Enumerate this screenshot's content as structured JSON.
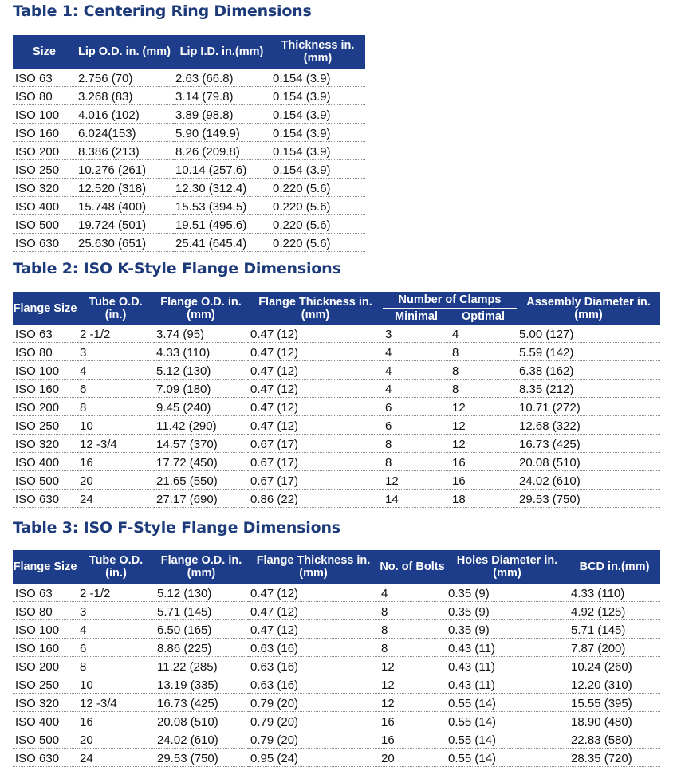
{
  "table1": {
    "title": "Table 1: Centering Ring Dimensions",
    "headers": [
      "Size",
      "Lip O.D. in. (mm)",
      "Lip I.D. in.(mm)",
      "Thickness in. (mm)"
    ],
    "rows": [
      [
        "ISO 63",
        "2.756 (70)",
        "2.63 (66.8)",
        "0.154 (3.9)"
      ],
      [
        "ISO 80",
        "3.268 (83)",
        "3.14 (79.8)",
        "0.154 (3.9)"
      ],
      [
        "ISO 100",
        "4.016 (102)",
        "3.89 (98.8)",
        "0.154 (3.9)"
      ],
      [
        "ISO 160",
        "6.024(153)",
        "5.90 (149.9)",
        "0.154 (3.9)"
      ],
      [
        "ISO 200",
        "8.386 (213)",
        "8.26 (209.8)",
        "0.154 (3.9)"
      ],
      [
        "ISO 250",
        "10.276 (261)",
        "10.14 (257.6)",
        "0.154 (3.9)"
      ],
      [
        "ISO 320",
        "12.520 (318)",
        "12.30 (312.4)",
        "0.220 (5.6)"
      ],
      [
        "ISO 400",
        "15.748 (400)",
        "15.53 (394.5)",
        "0.220 (5.6)"
      ],
      [
        "ISO 500",
        "19.724 (501)",
        "19.51 (495.6)",
        "0.220 (5.6)"
      ],
      [
        "ISO 630",
        "25.630 (651)",
        "25.41 (645.4)",
        "0.220 (5.6)"
      ]
    ]
  },
  "table2": {
    "title": "Table 2: ISO K-Style Flange Dimensions",
    "headers": [
      "Flange Size",
      "Tube O.D. (in.)",
      "Flange O.D. in. (mm)",
      "Flange Thickness in. (mm)",
      "Number of Clamps",
      "Assembly Diameter in.(mm)"
    ],
    "subheaders": [
      "Minimal",
      "Optimal"
    ],
    "rows": [
      [
        "ISO 63",
        "2 -1/2",
        "3.74 (95)",
        "0.47 (12)",
        "3",
        "4",
        "5.00 (127)"
      ],
      [
        "ISO 80",
        "3",
        "4.33 (110)",
        "0.47 (12)",
        "4",
        "8",
        "5.59 (142)"
      ],
      [
        "ISO 100",
        "4",
        "5.12 (130)",
        "0.47 (12)",
        "4",
        "8",
        "6.38 (162)"
      ],
      [
        "ISO 160",
        "6",
        "7.09 (180)",
        "0.47 (12)",
        "4",
        "8",
        "8.35 (212)"
      ],
      [
        "ISO 200",
        "8",
        "9.45 (240)",
        "0.47 (12)",
        "6",
        "12",
        "10.71 (272)"
      ],
      [
        "ISO 250",
        "10",
        "11.42 (290)",
        "0.47 (12)",
        "6",
        "12",
        "12.68 (322)"
      ],
      [
        "ISO 320",
        "12 -3/4",
        "14.57 (370)",
        "0.67 (17)",
        "8",
        "12",
        "16.73 (425)"
      ],
      [
        "ISO 400",
        "16",
        "17.72 (450)",
        "0.67 (17)",
        "8",
        "16",
        "20.08 (510)"
      ],
      [
        "ISO 500",
        "20",
        "21.65 (550)",
        "0.67 (17)",
        "12",
        "16",
        "24.02 (610)"
      ],
      [
        "ISO 630",
        "24",
        "27.17 (690)",
        "0.86 (22)",
        "14",
        "18",
        "29.53 (750)"
      ]
    ]
  },
  "table3": {
    "title": "Table 3: ISO F-Style Flange Dimensions",
    "headers": [
      "Flange Size",
      "Tube O.D. (in.)",
      "Flange O.D. in.(mm)",
      "Flange Thickness in.(mm)",
      "No. of Bolts",
      "Holes Diameter in. (mm)",
      "BCD in.(mm)"
    ],
    "rows": [
      [
        "ISO 63",
        "2 -1/2",
        "5.12 (130)",
        "0.47 (12)",
        "4",
        "0.35 (9)",
        "4.33 (110)"
      ],
      [
        "ISO 80",
        "3",
        "5.71 (145)",
        "0.47 (12)",
        "8",
        "0.35 (9)",
        "4.92 (125)"
      ],
      [
        "ISO 100",
        "4",
        "6.50 (165)",
        "0.47 (12)",
        "8",
        "0.35 (9)",
        "5.71 (145)"
      ],
      [
        "ISO 160",
        "6",
        "8.86 (225)",
        "0.63 (16)",
        "8",
        "0.43 (11)",
        "7.87 (200)"
      ],
      [
        "ISO 200",
        "8",
        "11.22 (285)",
        "0.63 (16)",
        "12",
        "0.43 (11)",
        "10.24 (260)"
      ],
      [
        "ISO 250",
        "10",
        "13.19 (335)",
        "0.63 (16)",
        "12",
        "0.43 (11)",
        "12.20 (310)"
      ],
      [
        "ISO 320",
        "12 -3/4",
        "16.73 (425)",
        "0.79 (20)",
        "12",
        "0.55 (14)",
        "15.55 (395)"
      ],
      [
        "ISO 400",
        "16",
        "20.08 (510)",
        "0.79 (20)",
        "16",
        "0.55 (14)",
        "18.90 (480)"
      ],
      [
        "ISO 500",
        "20",
        "24.02 (610)",
        "0.79 (20)",
        "16",
        "0.55 (14)",
        "22.83 (580)"
      ],
      [
        "ISO 630",
        "24",
        "29.53 (750)",
        "0.95 (24)",
        "20",
        "0.55 (14)",
        "28.35 (720)"
      ]
    ]
  }
}
